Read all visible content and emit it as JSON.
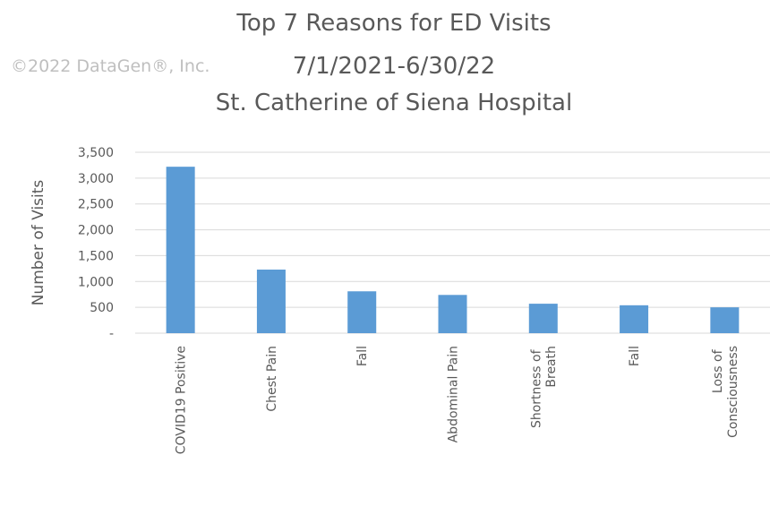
{
  "chart_data": {
    "type": "bar",
    "title": [
      "Top 7 Reasons for ED Visits",
      "7/1/2021-6/30/22",
      "St. Catherine of Siena Hospital"
    ],
    "watermark": "©2022 DataGen®, Inc.",
    "y_label": "Number of Visits",
    "categories": [
      "COVID19 Positive",
      "Chest Pain",
      "Fall",
      "Abdominal Pain",
      "Shortness of Breath",
      "Fall",
      "Loss of Consciousness"
    ],
    "values": [
      3220,
      1230,
      810,
      740,
      570,
      540,
      500
    ],
    "color": "#5b9bd5",
    "ylim": [
      0,
      3500
    ],
    "yticks": [
      {
        "value": 0,
        "label": "-"
      },
      500,
      {
        "value": 1000,
        "label": "1,000"
      },
      {
        "value": 1500,
        "label": "1,500"
      },
      {
        "value": 2000,
        "label": "2,000"
      },
      {
        "value": 2500,
        "label": "2,500"
      },
      {
        "value": 3000,
        "label": "3,000"
      },
      {
        "value": 3500,
        "label": "3,500"
      }
    ],
    "grid": true
  }
}
